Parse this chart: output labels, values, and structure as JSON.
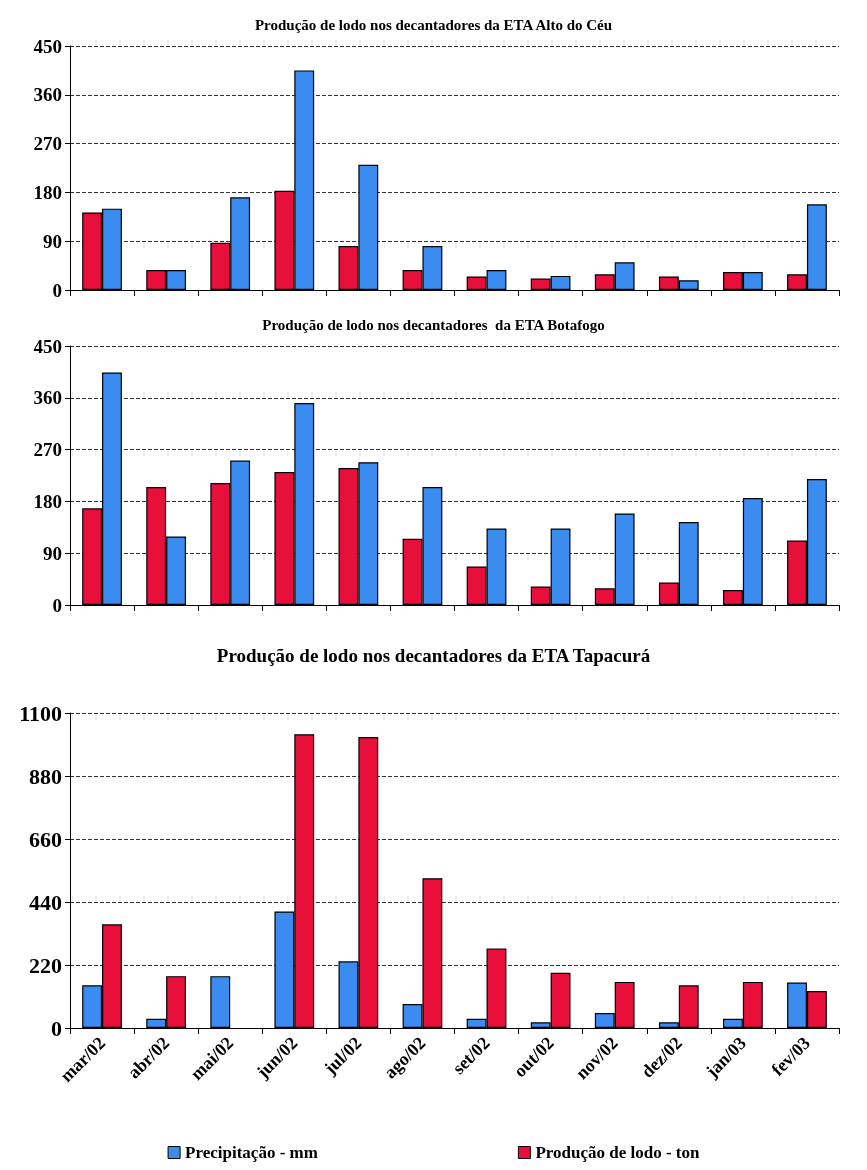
{
  "chart_data": [
    {
      "type": "bar",
      "title": "Produção de lodo nos decantadores da ETA Alto do Céu",
      "categories": [
        null,
        null,
        null,
        null,
        null,
        null,
        null,
        null,
        null,
        null,
        null,
        null
      ],
      "series": [
        {
          "color": "#e8103a",
          "values": [
            143,
            37,
            87,
            183,
            81,
            37,
            25,
            21,
            29,
            25,
            33,
            29
          ]
        },
        {
          "color": "#3a8cf0",
          "values": [
            150,
            37,
            171,
            405,
            231,
            81,
            37,
            26,
            51,
            18,
            33,
            158
          ]
        }
      ],
      "ylim": [
        0,
        450
      ],
      "yticks": [
        0,
        90,
        180,
        270,
        360,
        450
      ],
      "grid": "y",
      "tick_labels": "y",
      "legend": false
    },
    {
      "type": "bar",
      "title": "Produção de lodo nos decantadores  da ETA Botafogo",
      "categories": [
        null,
        null,
        null,
        null,
        null,
        null,
        null,
        null,
        null,
        null,
        null,
        null
      ],
      "series": [
        {
          "color": "#e8103a",
          "values": [
            168,
            205,
            212,
            231,
            238,
            115,
            67,
            32,
            29,
            39,
            26,
            112
          ]
        },
        {
          "color": "#3a8cf0",
          "values": [
            404,
            119,
            251,
            351,
            248,
            205,
            133,
            133,
            159,
            144,
            186,
            219
          ]
        }
      ],
      "ylim": [
        0,
        450
      ],
      "yticks": [
        0,
        90,
        180,
        270,
        360,
        450
      ],
      "grid": "y",
      "tick_labels": "y",
      "legend": false
    },
    {
      "type": "bar",
      "title": "Produção de lodo nos decantadores da ETA Tapacurá",
      "categories": [
        "mar/02",
        "abr/02",
        "mai/02",
        "jun/02",
        "jul/02",
        "ago/02",
        "set/02",
        "out/02",
        "nov/02",
        "dez/02",
        "jan/03",
        "fev/03"
      ],
      "series": [
        {
          "name": "Precipitação - mm",
          "color": "#3a8cf0",
          "values": [
            149,
            32,
            181,
            407,
            233,
            84,
            32,
            20,
            52,
            20,
            32,
            159
          ]
        },
        {
          "name": "Produção de lodo - ton",
          "color": "#e8103a",
          "values": [
            362,
            181,
            null,
            1026,
            1016,
            523,
            278,
            193,
            161,
            149,
            161,
            129
          ]
        }
      ],
      "ylim": [
        0,
        1100
      ],
      "yticks": [
        0,
        220,
        440,
        660,
        880,
        1100
      ],
      "grid": "y",
      "legend": "bottom"
    }
  ]
}
